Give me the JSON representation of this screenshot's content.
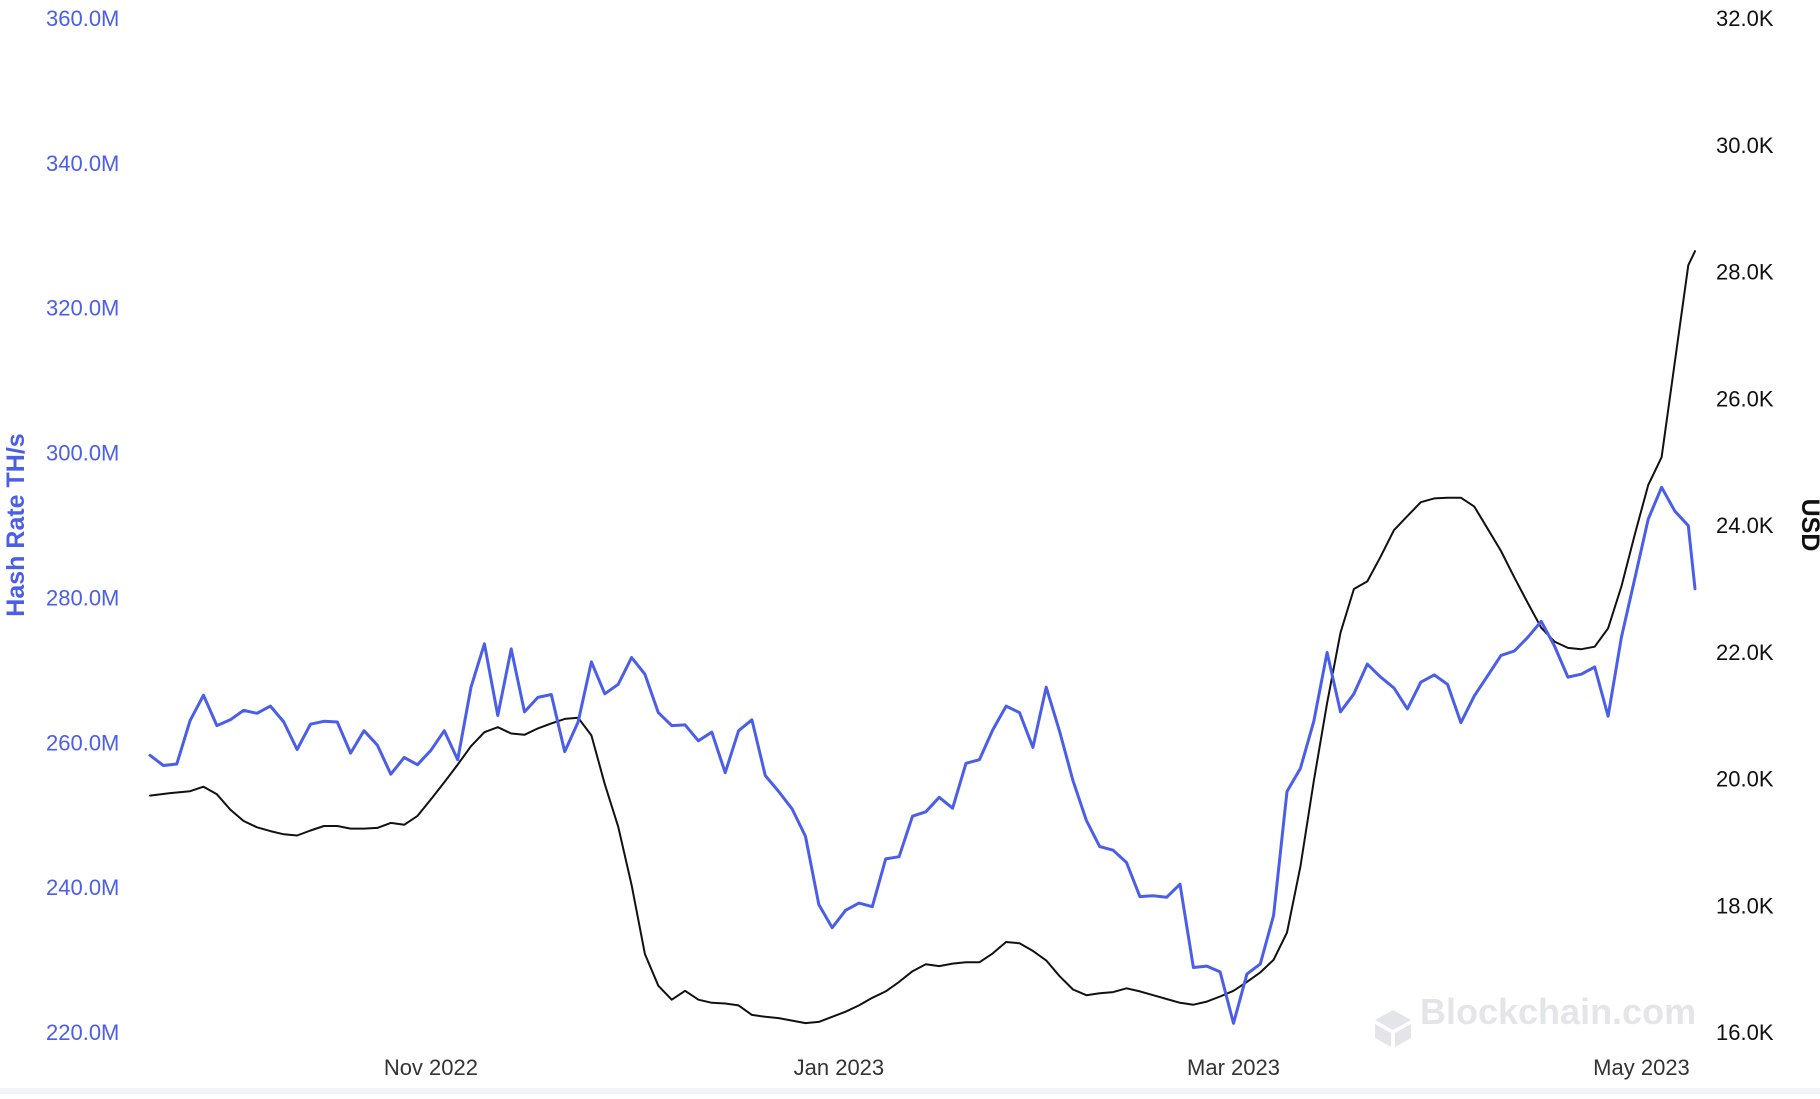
{
  "chart_data": {
    "type": "line",
    "x_ticks": [
      "Nov 2022",
      "Jan 2023",
      "Mar 2023",
      "May 2023"
    ],
    "x_range": [
      "2022-09-20",
      "2023-05-09"
    ],
    "y_left": {
      "label": "Hash Rate TH/s",
      "range": [
        220000000,
        360000000
      ],
      "ticks": [
        "360.0M",
        "340.0M",
        "320.0M",
        "300.0M",
        "280.0M",
        "260.0M",
        "240.0M",
        "220.0M"
      ]
    },
    "y_right": {
      "label": "USD",
      "range": [
        16000,
        32000
      ],
      "ticks": [
        "32.0K",
        "30.0K",
        "28.0K",
        "26.0K",
        "24.0K",
        "22.0K",
        "20.0K",
        "18.0K",
        "16.0K"
      ]
    },
    "grid": false,
    "series": [
      {
        "color": "#4a5ee8",
        "axis": "left",
        "points": [
          [
            "2022-09-20",
            258.2
          ],
          [
            "2022-09-22",
            256.8
          ],
          [
            "2022-09-24",
            257.0
          ],
          [
            "2022-09-26",
            263.0
          ],
          [
            "2022-09-28",
            266.5
          ],
          [
            "2022-09-30",
            262.3
          ],
          [
            "2022-10-02",
            263.1
          ],
          [
            "2022-10-04",
            264.4
          ],
          [
            "2022-10-06",
            264.0
          ],
          [
            "2022-10-08",
            265.0
          ],
          [
            "2022-10-10",
            262.8
          ],
          [
            "2022-10-12",
            259.0
          ],
          [
            "2022-10-14",
            262.5
          ],
          [
            "2022-10-16",
            262.9
          ],
          [
            "2022-10-18",
            262.8
          ],
          [
            "2022-10-20",
            258.5
          ],
          [
            "2022-10-22",
            261.6
          ],
          [
            "2022-10-24",
            259.6
          ],
          [
            "2022-10-26",
            255.6
          ],
          [
            "2022-10-28",
            257.9
          ],
          [
            "2022-10-30",
            256.9
          ],
          [
            "2022-11-01",
            258.9
          ],
          [
            "2022-11-03",
            261.6
          ],
          [
            "2022-11-05",
            257.6
          ],
          [
            "2022-11-07",
            267.6
          ],
          [
            "2022-11-09",
            273.6
          ],
          [
            "2022-11-11",
            263.7
          ],
          [
            "2022-11-13",
            272.9
          ],
          [
            "2022-11-15",
            264.2
          ],
          [
            "2022-11-17",
            266.2
          ],
          [
            "2022-11-19",
            266.6
          ],
          [
            "2022-11-21",
            258.7
          ],
          [
            "2022-11-23",
            262.8
          ],
          [
            "2022-11-25",
            271.1
          ],
          [
            "2022-11-27",
            266.7
          ],
          [
            "2022-11-29",
            268.0
          ],
          [
            "2022-12-01",
            271.7
          ],
          [
            "2022-12-03",
            269.4
          ],
          [
            "2022-12-05",
            264.1
          ],
          [
            "2022-12-07",
            262.3
          ],
          [
            "2022-12-09",
            262.4
          ],
          [
            "2022-12-11",
            260.2
          ],
          [
            "2022-12-13",
            261.4
          ],
          [
            "2022-12-15",
            255.8
          ],
          [
            "2022-12-17",
            261.6
          ],
          [
            "2022-12-19",
            263.1
          ],
          [
            "2022-12-21",
            255.4
          ],
          [
            "2022-12-23",
            253.2
          ],
          [
            "2022-12-25",
            250.8
          ],
          [
            "2022-12-27",
            247.0
          ],
          [
            "2022-12-29",
            237.6
          ],
          [
            "2022-12-31",
            234.4
          ],
          [
            "2023-01-02",
            236.8
          ],
          [
            "2023-01-04",
            237.8
          ],
          [
            "2023-01-06",
            237.3
          ],
          [
            "2023-01-08",
            243.9
          ],
          [
            "2023-01-10",
            244.2
          ],
          [
            "2023-01-12",
            249.8
          ],
          [
            "2023-01-14",
            250.4
          ],
          [
            "2023-01-16",
            252.4
          ],
          [
            "2023-01-18",
            250.9
          ],
          [
            "2023-01-20",
            257.1
          ],
          [
            "2023-01-22",
            257.6
          ],
          [
            "2023-01-24",
            261.7
          ],
          [
            "2023-01-26",
            265.0
          ],
          [
            "2023-01-28",
            264.1
          ],
          [
            "2023-01-30",
            259.3
          ],
          [
            "2023-02-01",
            267.6
          ],
          [
            "2023-02-03",
            261.5
          ],
          [
            "2023-02-05",
            254.7
          ],
          [
            "2023-02-07",
            249.2
          ],
          [
            "2023-02-09",
            245.6
          ],
          [
            "2023-02-11",
            245.1
          ],
          [
            "2023-02-13",
            243.4
          ],
          [
            "2023-02-15",
            238.7
          ],
          [
            "2023-02-17",
            238.8
          ],
          [
            "2023-02-19",
            238.6
          ],
          [
            "2023-02-21",
            240.4
          ],
          [
            "2023-02-23",
            228.9
          ],
          [
            "2023-02-25",
            229.1
          ],
          [
            "2023-02-27",
            228.3
          ],
          [
            "2023-03-01",
            221.2
          ],
          [
            "2023-03-03",
            228.0
          ],
          [
            "2023-03-05",
            229.4
          ],
          [
            "2023-03-07",
            236.1
          ],
          [
            "2023-03-09",
            253.2
          ],
          [
            "2023-03-11",
            256.4
          ],
          [
            "2023-03-13",
            262.9
          ],
          [
            "2023-03-15",
            272.4
          ],
          [
            "2023-03-17",
            264.2
          ],
          [
            "2023-03-19",
            266.7
          ],
          [
            "2023-03-21",
            270.8
          ],
          [
            "2023-03-23",
            269.0
          ],
          [
            "2023-03-25",
            267.5
          ],
          [
            "2023-03-27",
            264.6
          ],
          [
            "2023-03-29",
            268.3
          ],
          [
            "2023-03-31",
            269.3
          ],
          [
            "2023-04-02",
            268.0
          ],
          [
            "2023-04-04",
            262.7
          ],
          [
            "2023-04-06",
            266.4
          ],
          [
            "2023-04-08",
            269.2
          ],
          [
            "2023-04-10",
            272.0
          ],
          [
            "2023-04-12",
            272.6
          ],
          [
            "2023-04-14",
            274.5
          ],
          [
            "2023-04-16",
            276.7
          ],
          [
            "2023-04-18",
            273.3
          ],
          [
            "2023-04-20",
            269.0
          ],
          [
            "2023-04-22",
            269.4
          ],
          [
            "2023-04-24",
            270.4
          ],
          [
            "2023-04-26",
            263.6
          ],
          [
            "2023-04-28",
            274.5
          ],
          [
            "2023-04-30",
            282.6
          ],
          [
            "2023-05-02",
            290.8
          ],
          [
            "2023-05-04",
            295.2
          ],
          [
            "2023-05-06",
            291.9
          ],
          [
            "2023-05-08",
            289.9
          ],
          [
            "2023-05-09",
            281.2
          ]
        ]
      },
      {
        "color": "#111111",
        "axis": "right",
        "points": [
          [
            "2022-09-20",
            19.73
          ],
          [
            "2022-09-23",
            19.77
          ],
          [
            "2022-09-26",
            19.8
          ],
          [
            "2022-09-28",
            19.87
          ],
          [
            "2022-09-30",
            19.75
          ],
          [
            "2022-10-02",
            19.51
          ],
          [
            "2022-10-04",
            19.33
          ],
          [
            "2022-10-06",
            19.23
          ],
          [
            "2022-10-08",
            19.17
          ],
          [
            "2022-10-10",
            19.12
          ],
          [
            "2022-10-12",
            19.1
          ],
          [
            "2022-10-14",
            19.18
          ],
          [
            "2022-10-16",
            19.25
          ],
          [
            "2022-10-18",
            19.25
          ],
          [
            "2022-10-20",
            19.21
          ],
          [
            "2022-10-22",
            19.21
          ],
          [
            "2022-10-24",
            19.22
          ],
          [
            "2022-10-26",
            19.3
          ],
          [
            "2022-10-28",
            19.27
          ],
          [
            "2022-10-30",
            19.41
          ],
          [
            "2022-11-01",
            19.67
          ],
          [
            "2022-11-03",
            19.94
          ],
          [
            "2022-11-05",
            20.22
          ],
          [
            "2022-11-07",
            20.51
          ],
          [
            "2022-11-09",
            20.73
          ],
          [
            "2022-11-11",
            20.81
          ],
          [
            "2022-11-13",
            20.71
          ],
          [
            "2022-11-15",
            20.69
          ],
          [
            "2022-11-17",
            20.79
          ],
          [
            "2022-11-19",
            20.87
          ],
          [
            "2022-11-21",
            20.94
          ],
          [
            "2022-11-23",
            20.96
          ],
          [
            "2022-11-25",
            20.68
          ],
          [
            "2022-11-27",
            19.91
          ],
          [
            "2022-11-29",
            19.24
          ],
          [
            "2022-12-01",
            18.32
          ],
          [
            "2022-12-03",
            17.23
          ],
          [
            "2022-12-05",
            16.73
          ],
          [
            "2022-12-07",
            16.51
          ],
          [
            "2022-12-09",
            16.65
          ],
          [
            "2022-12-11",
            16.51
          ],
          [
            "2022-12-13",
            16.46
          ],
          [
            "2022-12-15",
            16.45
          ],
          [
            "2022-12-17",
            16.42
          ],
          [
            "2022-12-19",
            16.27
          ],
          [
            "2022-12-21",
            16.24
          ],
          [
            "2022-12-23",
            16.22
          ],
          [
            "2022-12-25",
            16.18
          ],
          [
            "2022-12-27",
            16.14
          ],
          [
            "2022-12-29",
            16.16
          ],
          [
            "2022-12-31",
            16.24
          ],
          [
            "2023-01-02",
            16.32
          ],
          [
            "2023-01-04",
            16.42
          ],
          [
            "2023-01-06",
            16.54
          ],
          [
            "2023-01-08",
            16.64
          ],
          [
            "2023-01-10",
            16.79
          ],
          [
            "2023-01-12",
            16.96
          ],
          [
            "2023-01-14",
            17.07
          ],
          [
            "2023-01-16",
            17.04
          ],
          [
            "2023-01-18",
            17.08
          ],
          [
            "2023-01-20",
            17.1
          ],
          [
            "2023-01-22",
            17.1
          ],
          [
            "2023-01-24",
            17.24
          ],
          [
            "2023-01-26",
            17.42
          ],
          [
            "2023-01-28",
            17.4
          ],
          [
            "2023-01-30",
            17.28
          ],
          [
            "2023-02-01",
            17.13
          ],
          [
            "2023-02-03",
            16.88
          ],
          [
            "2023-02-05",
            16.67
          ],
          [
            "2023-02-07",
            16.58
          ],
          [
            "2023-02-09",
            16.61
          ],
          [
            "2023-02-11",
            16.63
          ],
          [
            "2023-02-13",
            16.69
          ],
          [
            "2023-02-15",
            16.64
          ],
          [
            "2023-02-17",
            16.58
          ],
          [
            "2023-02-19",
            16.52
          ],
          [
            "2023-02-21",
            16.46
          ],
          [
            "2023-02-23",
            16.43
          ],
          [
            "2023-02-25",
            16.48
          ],
          [
            "2023-02-27",
            16.56
          ],
          [
            "2023-03-01",
            16.65
          ],
          [
            "2023-03-03",
            16.79
          ],
          [
            "2023-03-05",
            16.94
          ],
          [
            "2023-03-07",
            17.14
          ],
          [
            "2023-03-09",
            17.57
          ],
          [
            "2023-03-11",
            18.61
          ],
          [
            "2023-03-13",
            19.96
          ],
          [
            "2023-03-15",
            21.19
          ],
          [
            "2023-03-17",
            22.3
          ],
          [
            "2023-03-19",
            22.99
          ],
          [
            "2023-03-21",
            23.11
          ],
          [
            "2023-03-23",
            23.5
          ],
          [
            "2023-03-25",
            23.92
          ],
          [
            "2023-03-27",
            24.14
          ],
          [
            "2023-03-29",
            24.36
          ],
          [
            "2023-03-31",
            24.42
          ],
          [
            "2023-04-02",
            24.43
          ],
          [
            "2023-04-04",
            24.43
          ],
          [
            "2023-04-06",
            24.29
          ],
          [
            "2023-04-08",
            23.94
          ],
          [
            "2023-04-10",
            23.59
          ],
          [
            "2023-04-12",
            23.17
          ],
          [
            "2023-04-14",
            22.77
          ],
          [
            "2023-04-16",
            22.38
          ],
          [
            "2023-04-18",
            22.16
          ],
          [
            "2023-04-20",
            22.06
          ],
          [
            "2023-04-22",
            22.04
          ],
          [
            "2023-04-24",
            22.08
          ],
          [
            "2023-04-26",
            22.37
          ],
          [
            "2023-04-28",
            23.03
          ],
          [
            "2023-04-30",
            23.85
          ],
          [
            "2023-05-02",
            24.63
          ],
          [
            "2023-05-04",
            25.07
          ],
          [
            "2023-05-06",
            26.58
          ],
          [
            "2023-05-08",
            28.1
          ],
          [
            "2023-05-09",
            28.32
          ]
        ]
      }
    ],
    "legend": "none",
    "watermark": "Blockchain.com"
  }
}
